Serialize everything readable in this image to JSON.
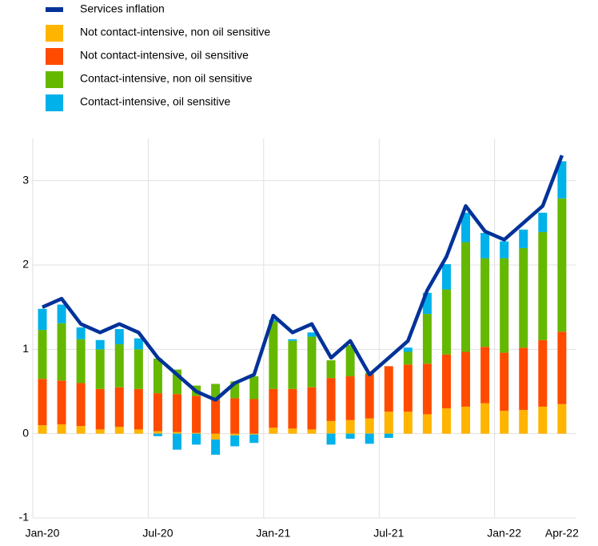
{
  "chart_data": {
    "type": "stacked_bar_line",
    "categories": [
      "Jan-20",
      null,
      null,
      null,
      null,
      null,
      "Jul-20",
      null,
      null,
      null,
      null,
      null,
      "Jan-21",
      null,
      null,
      null,
      null,
      null,
      "Jul-21",
      null,
      null,
      null,
      null,
      null,
      "Jan-22",
      null,
      null,
      "Apr-22"
    ],
    "series": [
      {
        "name": "Services inflation",
        "type": "line",
        "color": "#003299",
        "values": [
          1.5,
          1.6,
          1.3,
          1.2,
          1.3,
          1.2,
          0.9,
          0.7,
          0.5,
          0.4,
          0.6,
          0.7,
          1.4,
          1.2,
          1.3,
          0.9,
          1.1,
          0.7,
          0.9,
          1.1,
          1.7,
          2.1,
          2.7,
          2.4,
          2.3,
          2.5,
          2.7,
          3.3
        ]
      },
      {
        "name": "Not contact-intensive, non oil sensitive",
        "type": "bar",
        "color": "#ffb400",
        "values": [
          0.1,
          0.11,
          0.09,
          0.05,
          0.08,
          0.05,
          0.03,
          0.02,
          0.01,
          -0.07,
          -0.02,
          -0.01,
          0.07,
          0.06,
          0.05,
          0.15,
          0.16,
          0.18,
          0.26,
          0.26,
          0.23,
          0.3,
          0.32,
          0.36,
          0.27,
          0.28,
          0.32,
          0.35
        ]
      },
      {
        "name": "Not contact-intensive, oil sensitive",
        "type": "bar",
        "color": "#ff4b00",
        "values": [
          0.55,
          0.52,
          0.51,
          0.48,
          0.47,
          0.48,
          0.45,
          0.45,
          0.44,
          0.4,
          0.42,
          0.41,
          0.46,
          0.47,
          0.5,
          0.51,
          0.52,
          0.52,
          0.54,
          0.56,
          0.6,
          0.64,
          0.65,
          0.67,
          0.69,
          0.74,
          0.79,
          0.86
        ]
      },
      {
        "name": "Contact-intensive, non oil sensitive",
        "type": "bar",
        "color": "#65b800",
        "values": [
          0.58,
          0.68,
          0.52,
          0.47,
          0.51,
          0.47,
          0.41,
          0.29,
          0.12,
          0.19,
          0.2,
          0.27,
          0.8,
          0.57,
          0.6,
          0.21,
          0.37,
          0.02,
          0,
          0.15,
          0.59,
          0.77,
          1.3,
          1.05,
          1.12,
          1.18,
          1.28,
          1.58
        ]
      },
      {
        "name": "Contact-intensive, oil sensitive",
        "type": "bar",
        "color": "#00b1ea",
        "values": [
          0.25,
          0.22,
          0.14,
          0.11,
          0.18,
          0.13,
          -0.03,
          -0.19,
          -0.13,
          -0.18,
          -0.13,
          -0.1,
          0.02,
          0.02,
          0.05,
          -0.13,
          -0.06,
          -0.12,
          -0.05,
          0.05,
          0.25,
          0.3,
          0.35,
          0.3,
          0.2,
          0.22,
          0.23,
          0.44
        ]
      }
    ],
    "ylim": [
      -1,
      3.5
    ],
    "yticks": [
      -1,
      0,
      1,
      2,
      3
    ],
    "grid": true
  }
}
